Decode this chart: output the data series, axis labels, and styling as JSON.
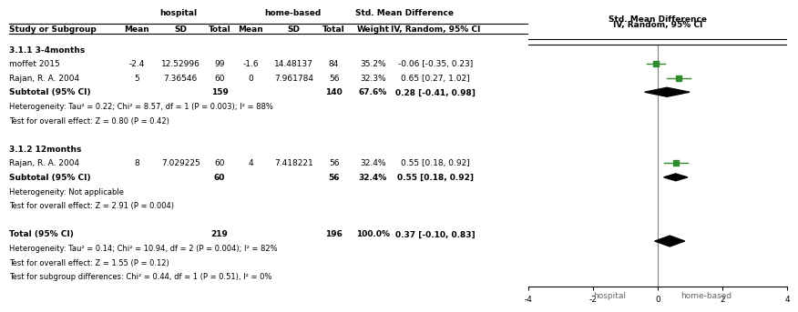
{
  "subgroup1_label": "3.1.1 3-4months",
  "studies1": [
    {
      "name": "moffet 2015",
      "hosp_mean": "-2.4",
      "hosp_sd": "12.52996",
      "hosp_total": "99",
      "home_mean": "-1.6",
      "home_sd": "14.48137",
      "home_total": "84",
      "weight": "35.2%",
      "ci_text": "-0.06 [-0.35, 0.23]",
      "smd": -0.06,
      "ci_low": -0.35,
      "ci_high": 0.23
    },
    {
      "name": "Rajan, R. A. 2004",
      "hosp_mean": "5",
      "hosp_sd": "7.36546",
      "hosp_total": "60",
      "home_mean": "0",
      "home_sd": "7.961784",
      "home_total": "56",
      "weight": "32.3%",
      "ci_text": "0.65 [0.27, 1.02]",
      "smd": 0.65,
      "ci_low": 0.27,
      "ci_high": 1.02
    }
  ],
  "subtotal1": {
    "hosp_total": "159",
    "home_total": "140",
    "weight": "67.6%",
    "ci_text": "0.28 [-0.41, 0.98]",
    "smd": 0.28,
    "ci_low": -0.41,
    "ci_high": 0.98
  },
  "hetero1": "Heterogeneity: Tau² = 0.22; Chi² = 8.57, df = 1 (P = 0.003); I² = 88%",
  "overall1": "Test for overall effect: Z = 0.80 (P = 0.42)",
  "subgroup2_label": "3.1.2 12months",
  "studies2": [
    {
      "name": "Rajan, R. A. 2004",
      "hosp_mean": "8",
      "hosp_sd": "7.029225",
      "hosp_total": "60",
      "home_mean": "4",
      "home_sd": "7.418221",
      "home_total": "56",
      "weight": "32.4%",
      "ci_text": "0.55 [0.18, 0.92]",
      "smd": 0.55,
      "ci_low": 0.18,
      "ci_high": 0.92
    }
  ],
  "subtotal2": {
    "hosp_total": "60",
    "home_total": "56",
    "weight": "32.4%",
    "ci_text": "0.55 [0.18, 0.92]",
    "smd": 0.55,
    "ci_low": 0.18,
    "ci_high": 0.92
  },
  "hetero2": "Heterogeneity: Not applicable",
  "overall2": "Test for overall effect: Z = 2.91 (P = 0.004)",
  "total": {
    "hosp_total": "219",
    "home_total": "196",
    "weight": "100.0%",
    "ci_text": "0.37 [-0.10, 0.83]",
    "smd": 0.37,
    "ci_low": -0.1,
    "ci_high": 0.83
  },
  "hetero_total": "Heterogeneity: Tau² = 0.14; Chi² = 10.94, df = 2 (P = 0.004); I² = 82%",
  "overall_total": "Test for overall effect: Z = 1.55 (P = 0.12)",
  "subgroup_diff": "Test for subgroup differences: Chi² = 0.44, df = 1 (P = 0.51), I² = 0%",
  "plot_xlim": [
    -4,
    4
  ],
  "plot_xticks": [
    -4,
    -2,
    0,
    2,
    4
  ],
  "xlabel_left": "hospital",
  "xlabel_right": "home-based",
  "study_color": "#2e8b2e",
  "subtotal_color": "#000000",
  "total_color": "#000000",
  "bg_color": "#ffffff"
}
